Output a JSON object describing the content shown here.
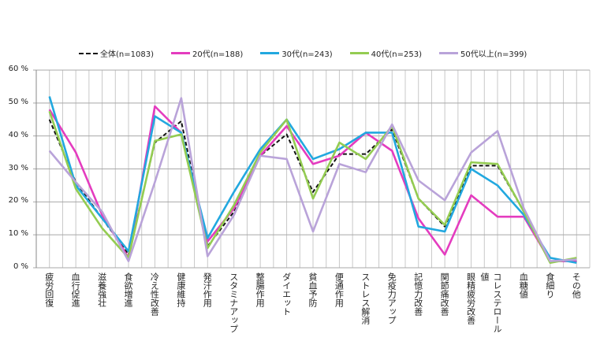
{
  "chart_data": {
    "type": "line",
    "title": "",
    "xlabel": "",
    "ylabel": "",
    "ylim": [
      0,
      60
    ],
    "yticks": [
      "0 %",
      "10 %",
      "20 %",
      "30 %",
      "40 %",
      "50 %",
      "60 %"
    ],
    "grid": true,
    "legend_position": "top",
    "categories": [
      "疲労回復",
      "血行促進",
      "滋養強壮",
      "食欲増進",
      "冷え性改善",
      "健康維持",
      "発汗作用",
      "スタミナアップ",
      "整腸作用",
      "ダイエット",
      "貧血予防",
      "便通作用",
      "ストレス解消",
      "免疫力アップ",
      "記憶力改善",
      "関節痛改善",
      "眼精疲労改善",
      "コレステロール値",
      "血糖値",
      "食細り",
      "その他"
    ],
    "series": [
      {
        "name": "全体(n=1083)",
        "color": "#111111",
        "dashed": true,
        "values": [
          45,
          26,
          15,
          4,
          38,
          44.5,
          6.5,
          17,
          34,
          40.5,
          23,
          34.5,
          34.5,
          42,
          21,
          12.5,
          31,
          31,
          17,
          2,
          2
        ]
      },
      {
        "name": "20代(n=188)",
        "color": "#e43cbf",
        "dashed": false,
        "values": [
          48,
          35,
          16,
          3,
          49,
          41,
          8,
          18,
          34,
          43,
          31.5,
          34,
          41,
          35.5,
          15,
          4,
          22,
          15.5,
          15.5,
          2,
          2
        ]
      },
      {
        "name": "30代(n=243)",
        "color": "#22a8df",
        "dashed": false,
        "values": [
          52,
          25,
          15,
          5,
          46,
          41,
          9,
          23,
          36,
          45,
          33,
          36,
          41,
          41,
          12.5,
          11,
          30,
          25,
          16,
          3,
          1.5
        ]
      },
      {
        "name": "40代(n=253)",
        "color": "#94cc52",
        "dashed": false,
        "values": [
          47.5,
          24,
          12,
          3,
          38.5,
          40.5,
          6,
          19,
          35,
          45,
          21,
          38,
          33,
          43,
          21,
          13,
          32,
          31.5,
          17,
          1.5,
          3
        ]
      },
      {
        "name": "50代以上(n=399)",
        "color": "#b9a3d9",
        "dashed": false,
        "values": [
          35.5,
          26,
          17,
          2,
          26,
          51.5,
          3.5,
          16,
          34,
          33,
          11,
          31.5,
          29,
          43.5,
          26.5,
          20.5,
          35,
          41.5,
          18,
          2,
          2.5
        ]
      }
    ]
  }
}
